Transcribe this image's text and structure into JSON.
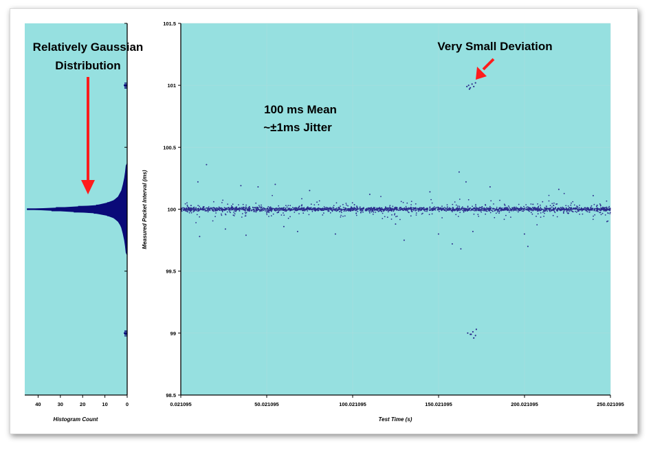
{
  "chart_data": [
    {
      "type": "bar",
      "orientation": "horizontal",
      "name": "histogram",
      "xlabel": "Histogram Count",
      "xlim": [
        46,
        0
      ],
      "xticks": [
        "40",
        "30",
        "20",
        "10",
        "0"
      ],
      "ylim": [
        98.5,
        101.5
      ],
      "bins": [
        {
          "y": 101.0,
          "count": 1.5
        },
        {
          "y": 100.35,
          "count": 0.5
        },
        {
          "y": 100.3,
          "count": 0.8
        },
        {
          "y": 100.25,
          "count": 1.2
        },
        {
          "y": 100.2,
          "count": 1.8
        },
        {
          "y": 100.15,
          "count": 2.5
        },
        {
          "y": 100.1,
          "count": 4
        },
        {
          "y": 100.07,
          "count": 6
        },
        {
          "y": 100.05,
          "count": 9
        },
        {
          "y": 100.03,
          "count": 14
        },
        {
          "y": 100.02,
          "count": 22
        },
        {
          "y": 100.01,
          "count": 32
        },
        {
          "y": 100.0,
          "count": 45
        },
        {
          "y": 99.99,
          "count": 34
        },
        {
          "y": 99.98,
          "count": 24
        },
        {
          "y": 99.97,
          "count": 15
        },
        {
          "y": 99.95,
          "count": 9
        },
        {
          "y": 99.93,
          "count": 6
        },
        {
          "y": 99.9,
          "count": 4
        },
        {
          "y": 99.87,
          "count": 3
        },
        {
          "y": 99.85,
          "count": 2.5
        },
        {
          "y": 99.8,
          "count": 1.8
        },
        {
          "y": 99.75,
          "count": 1.2
        },
        {
          "y": 99.7,
          "count": 0.8
        },
        {
          "y": 99.65,
          "count": 0.5
        },
        {
          "y": 99.0,
          "count": 1.5
        }
      ],
      "annotations": [
        {
          "text_lines": [
            "Relatively Gaussian",
            "Distribution"
          ],
          "arrow": "down"
        }
      ]
    },
    {
      "type": "scatter",
      "name": "packet-interval",
      "xlabel": "Test Time (s)",
      "ylabel": "Measured Packet Interval (ms)",
      "xlim": [
        0.021095,
        250.021095
      ],
      "ylim": [
        98.5,
        101.5
      ],
      "xticks": [
        "0.021095",
        "50.021095",
        "100.021095",
        "150.021095",
        "200.021095",
        "250.021095"
      ],
      "yticks": [
        "101.5",
        "101",
        "100.5",
        "100",
        "99.5",
        "99",
        "98.5"
      ],
      "grid": true,
      "series": [
        {
          "values_summary": "about 2400 points; mean 100 ms, most within ±0.05 ms, spread up to ±0.3 ms",
          "mean": 100.0,
          "points_sample": [
            [
              2,
              100.01
            ],
            [
              4,
              99.98
            ],
            [
              6,
              100.03
            ],
            [
              8,
              99.99
            ],
            [
              10,
              100.22
            ],
            [
              11,
              99.78
            ],
            [
              15,
              100.36
            ],
            [
              20,
              100.0
            ],
            [
              26,
              99.84
            ],
            [
              35,
              100.19
            ],
            [
              38,
              99.79
            ],
            [
              40,
              100.02
            ],
            [
              45,
              100.18
            ],
            [
              50,
              99.97
            ],
            [
              55,
              100.2
            ],
            [
              60,
              99.86
            ],
            [
              68,
              99.82
            ],
            [
              75,
              100.15
            ],
            [
              90,
              99.8
            ],
            [
              110,
              100.12
            ],
            [
              125,
              99.88
            ],
            [
              130,
              99.75
            ],
            [
              145,
              100.14
            ],
            [
              150,
              99.8
            ],
            [
              158,
              99.72
            ],
            [
              162,
              100.3
            ],
            [
              163,
              99.68
            ],
            [
              166,
              100.22
            ],
            [
              170,
              99.82
            ],
            [
              180,
              100.18
            ],
            [
              200,
              99.8
            ],
            [
              202,
              99.7
            ],
            [
              220,
              100.16
            ],
            [
              240,
              100.11
            ],
            [
              248,
              99.9
            ]
          ]
        },
        {
          "name_hidden": true,
          "cluster_high": [
            [
              166.5,
              100.99
            ],
            [
              167.5,
              101.0
            ],
            [
              168.5,
              100.98
            ],
            [
              169.5,
              101.01
            ],
            [
              170.5,
              100.99
            ],
            [
              171.5,
              101.02
            ],
            [
              168.0,
              100.97
            ]
          ],
          "cluster_low": [
            [
              167.0,
              99.0
            ],
            [
              168.5,
              98.99
            ],
            [
              170.0,
              99.01
            ],
            [
              171.5,
              98.98
            ],
            [
              169.0,
              98.99
            ],
            [
              172.0,
              99.03
            ],
            [
              170.5,
              98.96
            ]
          ]
        }
      ],
      "annotations": [
        {
          "text_lines": [
            "100 ms Mean",
            "~±1ms Jitter"
          ]
        },
        {
          "text_lines": [
            "Very Small Deviation"
          ],
          "arrow": "down-left"
        }
      ]
    }
  ],
  "colors": {
    "plot_bg": "#96e0e0",
    "point": "#2c2c8c",
    "histogram": "#0a0a78",
    "arrow": "#ff1c1c",
    "grid": "#aadcdc"
  }
}
